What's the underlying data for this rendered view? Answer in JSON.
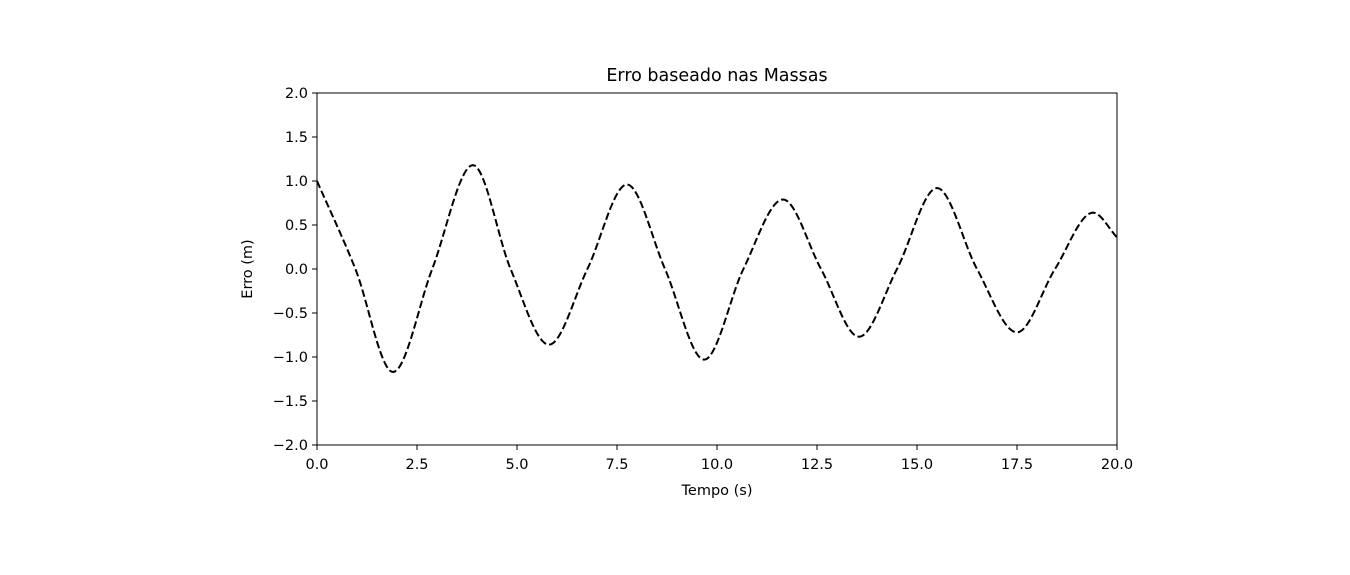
{
  "chart_data": {
    "type": "line",
    "title": "Erro baseado nas Massas",
    "xlabel": "Tempo (s)",
    "ylabel": "Erro (m)",
    "xlim": [
      0.0,
      20.0
    ],
    "ylim": [
      -2.0,
      2.0
    ],
    "x_ticks": [
      "0.0",
      "2.5",
      "5.0",
      "7.5",
      "10.0",
      "12.5",
      "15.0",
      "17.5",
      "20.0"
    ],
    "y_ticks": [
      "2.0",
      "1.5",
      "1.0",
      "0.5",
      "0.0",
      "−0.5",
      "−1.0",
      "−1.5",
      "−2.0"
    ],
    "grid": false,
    "line_style": "dashed",
    "line_color": "#000000",
    "series": [
      {
        "x": [
          0.0,
          0.96,
          1.9,
          2.88,
          3.9,
          4.84,
          5.8,
          6.76,
          7.75,
          8.7,
          9.68,
          10.66,
          11.65,
          12.6,
          13.55,
          14.5,
          15.5,
          16.5,
          17.5,
          18.45,
          19.4,
          20.0
        ],
        "y": [
          1.0,
          0.0,
          -1.17,
          0.0,
          1.18,
          0.0,
          -0.86,
          0.0,
          0.96,
          0.0,
          -1.03,
          0.0,
          0.79,
          0.0,
          -0.77,
          0.0,
          0.92,
          0.0,
          -0.72,
          0.0,
          0.64,
          0.36
        ]
      }
    ]
  }
}
